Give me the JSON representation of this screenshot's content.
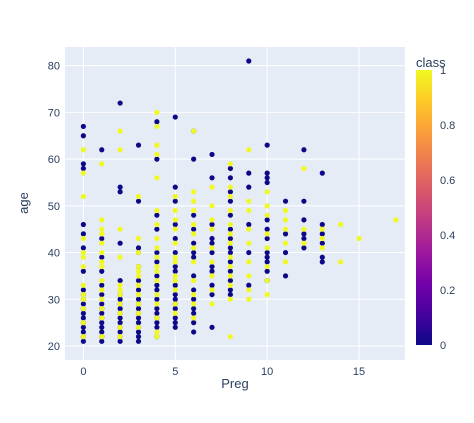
{
  "chart_data": {
    "type": "scatter",
    "xlabel": "Preg",
    "ylabel": "age",
    "xlim": [
      -1,
      17.5
    ],
    "ylim": [
      17,
      84
    ],
    "x_ticks": [
      0,
      5,
      10,
      15
    ],
    "y_ticks": [
      20,
      30,
      40,
      50,
      60,
      70,
      80
    ],
    "grid": true,
    "colorbar": {
      "title": "class",
      "range": [
        0,
        1
      ],
      "ticks": [
        "0",
        "0.2",
        "0.4",
        "0.6",
        "0.8",
        "1"
      ],
      "colorscale": [
        "#0d0887",
        "#46039f",
        "#7201a8",
        "#9c179e",
        "#bd3786",
        "#d8576b",
        "#ed7953",
        "#fb9f3a",
        "#fdca26",
        "#f0f921"
      ]
    },
    "colors": {
      "plot_bg": "#e5ecf6",
      "grid": "#ffffff",
      "text": "#2a3f5f",
      "class0": "#0d0887",
      "class1": "#f0f921"
    },
    "series": [
      {
        "class": 0,
        "points": [
          [
            0,
            21
          ],
          [
            0,
            22
          ],
          [
            0,
            23
          ],
          [
            0,
            24
          ],
          [
            0,
            25
          ],
          [
            0,
            26
          ],
          [
            0,
            27
          ],
          [
            0,
            28
          ],
          [
            0,
            29
          ],
          [
            0,
            30
          ],
          [
            0,
            31
          ],
          [
            0,
            32
          ],
          [
            0,
            36
          ],
          [
            0,
            41
          ],
          [
            0,
            44
          ],
          [
            0,
            46
          ],
          [
            0,
            58
          ],
          [
            0,
            59
          ],
          [
            0,
            65
          ],
          [
            0,
            67
          ],
          [
            1,
            21
          ],
          [
            1,
            22
          ],
          [
            1,
            23
          ],
          [
            1,
            24
          ],
          [
            1,
            25
          ],
          [
            1,
            26
          ],
          [
            1,
            27
          ],
          [
            1,
            28
          ],
          [
            1,
            29
          ],
          [
            1,
            31
          ],
          [
            1,
            33
          ],
          [
            1,
            36
          ],
          [
            1,
            39
          ],
          [
            1,
            43
          ],
          [
            1,
            62
          ],
          [
            2,
            21
          ],
          [
            2,
            22
          ],
          [
            2,
            23
          ],
          [
            2,
            24
          ],
          [
            2,
            25
          ],
          [
            2,
            26
          ],
          [
            2,
            27
          ],
          [
            2,
            28
          ],
          [
            2,
            29
          ],
          [
            2,
            30
          ],
          [
            2,
            31
          ],
          [
            2,
            34
          ],
          [
            2,
            42
          ],
          [
            2,
            53
          ],
          [
            2,
            54
          ],
          [
            2,
            72
          ],
          [
            3,
            21
          ],
          [
            3,
            22
          ],
          [
            3,
            23
          ],
          [
            3,
            24
          ],
          [
            3,
            25
          ],
          [
            3,
            26
          ],
          [
            3,
            27
          ],
          [
            3,
            28
          ],
          [
            3,
            29
          ],
          [
            3,
            30
          ],
          [
            3,
            32
          ],
          [
            3,
            34
          ],
          [
            3,
            37
          ],
          [
            3,
            40
          ],
          [
            3,
            41
          ],
          [
            3,
            51
          ],
          [
            3,
            63
          ],
          [
            4,
            22
          ],
          [
            4,
            24
          ],
          [
            4,
            25
          ],
          [
            4,
            26
          ],
          [
            4,
            27
          ],
          [
            4,
            28
          ],
          [
            4,
            30
          ],
          [
            4,
            32
          ],
          [
            4,
            33
          ],
          [
            4,
            35
          ],
          [
            4,
            38
          ],
          [
            4,
            40
          ],
          [
            4,
            45
          ],
          [
            4,
            48
          ],
          [
            4,
            60
          ],
          [
            4,
            68
          ],
          [
            5,
            24
          ],
          [
            5,
            25
          ],
          [
            5,
            26
          ],
          [
            5,
            28
          ],
          [
            5,
            29
          ],
          [
            5,
            30
          ],
          [
            5,
            31
          ],
          [
            5,
            33
          ],
          [
            5,
            36
          ],
          [
            5,
            37
          ],
          [
            5,
            40
          ],
          [
            5,
            43
          ],
          [
            5,
            46
          ],
          [
            5,
            51
          ],
          [
            5,
            54
          ],
          [
            5,
            69
          ],
          [
            6,
            23
          ],
          [
            6,
            25
          ],
          [
            6,
            27
          ],
          [
            6,
            28
          ],
          [
            6,
            30
          ],
          [
            6,
            32
          ],
          [
            6,
            35
          ],
          [
            6,
            39
          ],
          [
            6,
            40
          ],
          [
            6,
            42
          ],
          [
            6,
            45
          ],
          [
            6,
            48
          ],
          [
            6,
            60
          ],
          [
            6,
            66
          ],
          [
            7,
            24
          ],
          [
            7,
            31
          ],
          [
            7,
            33
          ],
          [
            7,
            36
          ],
          [
            7,
            37
          ],
          [
            7,
            40
          ],
          [
            7,
            42
          ],
          [
            7,
            43
          ],
          [
            7,
            46
          ],
          [
            7,
            56
          ],
          [
            7,
            61
          ],
          [
            8,
            31
          ],
          [
            8,
            32
          ],
          [
            8,
            34
          ],
          [
            8,
            36
          ],
          [
            8,
            38
          ],
          [
            8,
            40
          ],
          [
            8,
            41
          ],
          [
            8,
            43
          ],
          [
            8,
            45
          ],
          [
            8,
            48
          ],
          [
            8,
            51
          ],
          [
            8,
            53
          ],
          [
            8,
            56
          ],
          [
            8,
            58
          ],
          [
            9,
            81
          ],
          [
            9,
            33
          ],
          [
            9,
            40
          ],
          [
            9,
            46
          ],
          [
            9,
            54
          ],
          [
            9,
            57
          ],
          [
            10,
            34
          ],
          [
            10,
            36
          ],
          [
            10,
            38
          ],
          [
            10,
            39
          ],
          [
            10,
            40
          ],
          [
            10,
            43
          ],
          [
            10,
            45
          ],
          [
            10,
            47
          ],
          [
            10,
            55
          ],
          [
            10,
            56
          ],
          [
            10,
            57
          ],
          [
            10,
            63
          ],
          [
            11,
            35
          ],
          [
            11,
            40
          ],
          [
            11,
            44
          ],
          [
            11,
            51
          ],
          [
            12,
            41
          ],
          [
            12,
            43
          ],
          [
            12,
            44
          ],
          [
            12,
            47
          ],
          [
            12,
            51
          ],
          [
            12,
            62
          ],
          [
            13,
            38
          ],
          [
            13,
            39
          ],
          [
            13,
            42
          ],
          [
            13,
            44
          ],
          [
            13,
            46
          ],
          [
            13,
            57
          ]
        ]
      },
      {
        "class": 1,
        "points": [
          [
            0,
            22
          ],
          [
            0,
            25
          ],
          [
            0,
            28
          ],
          [
            0,
            30
          ],
          [
            0,
            31
          ],
          [
            0,
            33
          ],
          [
            0,
            37
          ],
          [
            0,
            39
          ],
          [
            0,
            40
          ],
          [
            0,
            43
          ],
          [
            0,
            52
          ],
          [
            0,
            57
          ],
          [
            0,
            62
          ],
          [
            1,
            22
          ],
          [
            1,
            26
          ],
          [
            1,
            28
          ],
          [
            1,
            30
          ],
          [
            1,
            32
          ],
          [
            1,
            34
          ],
          [
            1,
            37
          ],
          [
            1,
            38
          ],
          [
            1,
            40
          ],
          [
            1,
            42
          ],
          [
            1,
            44
          ],
          [
            1,
            45
          ],
          [
            1,
            47
          ],
          [
            1,
            59
          ],
          [
            2,
            22
          ],
          [
            2,
            24
          ],
          [
            2,
            27
          ],
          [
            2,
            29
          ],
          [
            2,
            31
          ],
          [
            2,
            32
          ],
          [
            2,
            33
          ],
          [
            2,
            39
          ],
          [
            2,
            45
          ],
          [
            2,
            62
          ],
          [
            2,
            66
          ],
          [
            3,
            24
          ],
          [
            3,
            27
          ],
          [
            3,
            29
          ],
          [
            3,
            31
          ],
          [
            3,
            33
          ],
          [
            3,
            35
          ],
          [
            3,
            36
          ],
          [
            3,
            37
          ],
          [
            3,
            40
          ],
          [
            3,
            43
          ],
          [
            3,
            52
          ],
          [
            4,
            22
          ],
          [
            4,
            23
          ],
          [
            4,
            26
          ],
          [
            4,
            29
          ],
          [
            4,
            31
          ],
          [
            4,
            34
          ],
          [
            4,
            36
          ],
          [
            4,
            37
          ],
          [
            4,
            39
          ],
          [
            4,
            41
          ],
          [
            4,
            43
          ],
          [
            4,
            46
          ],
          [
            4,
            49
          ],
          [
            4,
            56
          ],
          [
            4,
            61
          ],
          [
            4,
            63
          ],
          [
            4,
            67
          ],
          [
            4,
            70
          ],
          [
            5,
            27
          ],
          [
            5,
            29
          ],
          [
            5,
            32
          ],
          [
            5,
            34
          ],
          [
            5,
            35
          ],
          [
            5,
            38
          ],
          [
            5,
            39
          ],
          [
            5,
            42
          ],
          [
            5,
            45
          ],
          [
            5,
            47
          ],
          [
            5,
            49
          ],
          [
            5,
            52
          ],
          [
            6,
            26
          ],
          [
            6,
            29
          ],
          [
            6,
            31
          ],
          [
            6,
            34
          ],
          [
            6,
            38
          ],
          [
            6,
            41
          ],
          [
            6,
            44
          ],
          [
            6,
            46
          ],
          [
            6,
            49
          ],
          [
            6,
            51
          ],
          [
            6,
            53
          ],
          [
            6,
            66
          ],
          [
            7,
            29
          ],
          [
            7,
            32
          ],
          [
            7,
            35
          ],
          [
            7,
            38
          ],
          [
            7,
            41
          ],
          [
            7,
            45
          ],
          [
            7,
            47
          ],
          [
            7,
            50
          ],
          [
            7,
            54
          ],
          [
            8,
            22
          ],
          [
            8,
            30
          ],
          [
            8,
            33
          ],
          [
            8,
            35
          ],
          [
            8,
            37
          ],
          [
            8,
            39
          ],
          [
            8,
            42
          ],
          [
            8,
            44
          ],
          [
            8,
            46
          ],
          [
            8,
            49
          ],
          [
            8,
            52
          ],
          [
            8,
            54
          ],
          [
            8,
            59
          ],
          [
            9,
            30
          ],
          [
            9,
            32
          ],
          [
            9,
            35
          ],
          [
            9,
            38
          ],
          [
            9,
            42
          ],
          [
            9,
            45
          ],
          [
            9,
            49
          ],
          [
            9,
            51
          ],
          [
            9,
            62
          ],
          [
            10,
            31
          ],
          [
            10,
            34
          ],
          [
            10,
            37
          ],
          [
            10,
            41
          ],
          [
            10,
            44
          ],
          [
            10,
            48
          ],
          [
            10,
            50
          ],
          [
            10,
            53
          ],
          [
            11,
            38
          ],
          [
            11,
            42
          ],
          [
            11,
            45
          ],
          [
            11,
            47
          ],
          [
            11,
            49
          ],
          [
            12,
            42
          ],
          [
            12,
            45
          ],
          [
            12,
            58
          ],
          [
            13,
            41
          ],
          [
            13,
            43
          ],
          [
            13,
            45
          ],
          [
            14,
            38
          ],
          [
            14,
            46
          ],
          [
            15,
            43
          ],
          [
            17,
            47
          ]
        ]
      }
    ]
  }
}
